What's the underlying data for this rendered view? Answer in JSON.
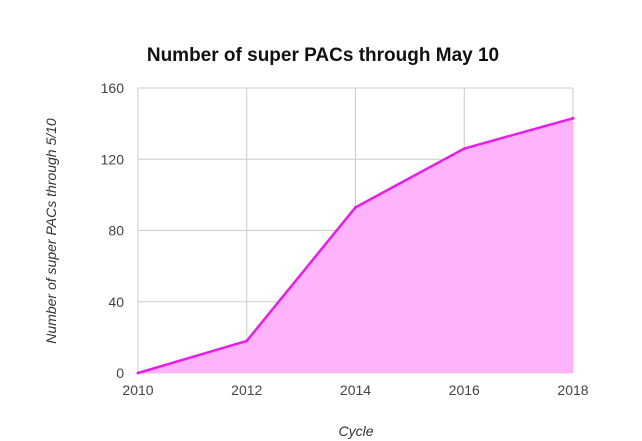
{
  "chart_data": {
    "type": "area",
    "title": "Number of super PACs through May 10",
    "xlabel": "Cycle",
    "ylabel": "Number of super PACs through 5/10",
    "x": [
      2010,
      2012,
      2014,
      2016,
      2018
    ],
    "series": [
      {
        "values": [
          0,
          18,
          93,
          126,
          143
        ]
      }
    ],
    "xlim": [
      2010,
      2018
    ],
    "ylim": [
      0,
      160
    ],
    "xticks": [
      "2010",
      "2012",
      "2014",
      "2016",
      "2018"
    ],
    "yticks": [
      "0",
      "40",
      "80",
      "120",
      "160"
    ],
    "grid": true,
    "legend": "none",
    "colors": {
      "line": "#e91ee6",
      "fill": "#ffb3fb",
      "grid": "#cccccc"
    }
  }
}
